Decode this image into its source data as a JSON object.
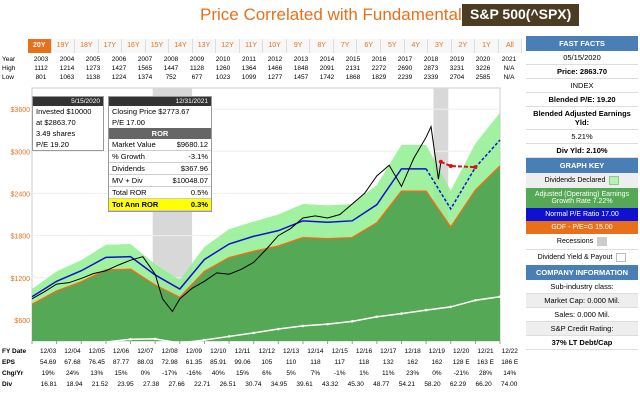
{
  "header": {
    "title": "Price Correlated with Fundamentals",
    "ticker": "S&P 500(^SPX)"
  },
  "tabs": [
    "20Y",
    "19Y",
    "18Y",
    "17Y",
    "16Y",
    "15Y",
    "14Y",
    "13Y",
    "12Y",
    "11Y",
    "10Y",
    "9Y",
    "8Y",
    "7Y",
    "6Y",
    "5Y",
    "4Y",
    "3Y",
    "2Y",
    "1Y",
    "All"
  ],
  "year_table": {
    "year_label": "Year",
    "high_label": "High",
    "low_label": "Low",
    "years": [
      "2003",
      "2004",
      "2005",
      "2006",
      "2007",
      "2008",
      "2009",
      "2010",
      "2011",
      "2012",
      "2013",
      "2014",
      "2015",
      "2016",
      "2017",
      "2018",
      "2019",
      "2020",
      "2021"
    ],
    "high": [
      "1112",
      "1214",
      "1273",
      "1427",
      "1565",
      "1447",
      "1128",
      "1260",
      "1364",
      "1466",
      "1848",
      "2091",
      "2131",
      "2272",
      "2690",
      "2873",
      "3231",
      "3226",
      "N/A"
    ],
    "low": [
      "801",
      "1063",
      "1138",
      "1224",
      "1374",
      "752",
      "677",
      "1023",
      "1099",
      "1277",
      "1457",
      "1742",
      "1868",
      "1829",
      "2239",
      "2339",
      "2704",
      "2585",
      "N/A"
    ]
  },
  "info_box": {
    "date": "5/15/2020",
    "line1": "Invested $10000",
    "line2": "at $2863.70",
    "line3": "3.49 shares",
    "line4": "P/E 19.20"
  },
  "ror_box": {
    "date": "12/31/2021",
    "line1": "Closing Price $2773.67",
    "line2": "P/E 17.00",
    "section": "ROR",
    "rows": [
      {
        "label": "Market Value",
        "value": "$9680.12"
      },
      {
        "label": "% Growth",
        "value": "-3.1%"
      },
      {
        "label": "Dividends",
        "value": "$367.96"
      },
      {
        "label": "MV + Div",
        "value": "$10048.07"
      },
      {
        "label": "Total ROR",
        "value": "0.5%"
      },
      {
        "label": "Tot Ann ROR",
        "value": "0.3%"
      }
    ]
  },
  "bottom_table": {
    "fy_label": "FY Date",
    "fy": [
      "12/03",
      "12/04",
      "12/05",
      "12/06",
      "12/07",
      "12/08",
      "12/09",
      "12/10",
      "12/11",
      "12/12",
      "12/13",
      "12/14",
      "12/15",
      "12/16",
      "12/17",
      "12/18",
      "12/19",
      "12/20",
      "12/21",
      "12/22"
    ],
    "eps_label": "EPS",
    "eps": [
      "54.69",
      "67.68",
      "76.45",
      "87.77",
      "88.03",
      "72.98",
      "61.35",
      "85.91",
      "99.06",
      "105",
      "110",
      "118",
      "117",
      "118",
      "132",
      "162",
      "162",
      "128 E",
      "163 E",
      "186 E"
    ],
    "chg_label": "Chg/Yr",
    "chg": [
      "19%",
      "24%",
      "13%",
      "15%",
      "0%",
      "-17%",
      "-16%",
      "40%",
      "15%",
      "6%",
      "5%",
      "7%",
      "-1%",
      "1%",
      "11%",
      "23%",
      "0%",
      "-21%",
      "28%",
      "14%"
    ],
    "div_label": "Div",
    "div": [
      "16.81",
      "18.94",
      "21.52",
      "23.95",
      "27.38",
      "27.66",
      "22.71",
      "26.51",
      "30.74",
      "34.95",
      "39.61",
      "43.32",
      "45.30",
      "48.77",
      "54.21",
      "58.20",
      "62.29",
      "66.20",
      "74.00"
    ]
  },
  "sidebar": {
    "fast_facts": "FAST FACTS",
    "date": "05/15/2020",
    "price": "Price: 2863.70",
    "index": "INDEX",
    "blended_pe": "Blended P/E: 19.20",
    "blended_yld_label": "Blended Adjusted Earnings Yld:",
    "blended_yld": "5.21%",
    "div_yld": "Div Yld: 2.10%",
    "graph_key": "GRAPH KEY",
    "dividends_declared": "Dividends Declared",
    "adj_earnings": "Adjusted (Operating) Earnings Growth Rate 7.22%",
    "normal_pe": "Normal P/E Ratio 17.00",
    "gdf_pe": "GDF - P/E=G 15.00",
    "recessions": "Recessions",
    "div_yield_payout": "Dividend Yield & Payout",
    "company_info": "COMPANY INFORMATION",
    "subindustry": "Sub-industry class:",
    "market_cap": "Market Cap: 0.000 Mil.",
    "sales": "Sales: 0.000 Mil.",
    "credit": "S&P Credit Rating:",
    "lt_debt": "37% LT Debt/Cap"
  },
  "colors": {
    "orange": "#e8701a",
    "green_band": "#8ff08f",
    "earnings_fill": "#55a855",
    "recession": "#d8d8d8",
    "normal_pe": "#1010d0",
    "price": "#000000",
    "projection_red": "#e01010",
    "white_line": "#ffffff"
  },
  "chart_data": {
    "type": "area",
    "ylabel": "",
    "y_ticks": [
      "$600",
      "$1200",
      "$1800",
      "$2400",
      "$3000",
      "$3600"
    ],
    "ylim": [
      300,
      3900
    ],
    "x_ticks": [
      "12/03",
      "12/04",
      "12/05",
      "12/06",
      "12/07",
      "12/08",
      "12/09",
      "12/10",
      "12/11",
      "12/12",
      "12/13",
      "12/14",
      "12/15",
      "12/16",
      "12/17",
      "12/18",
      "12/19",
      "12/20",
      "12/21",
      "12/22"
    ],
    "earnings_value_line": [
      820,
      1010,
      1140,
      1310,
      1320,
      1095,
      920,
      1290,
      1485,
      1575,
      1650,
      1770,
      1755,
      1770,
      1980,
      2430,
      2430,
      1920,
      2445,
      2790
    ],
    "upper_band": [
      1040,
      1290,
      1450,
      1670,
      1680,
      1390,
      1170,
      1640,
      1890,
      2000,
      2100,
      2250,
      2230,
      2250,
      2520,
      3090,
      3090,
      2440,
      3110,
      3550
    ],
    "normal_pe_line": [
      930,
      1150,
      1300,
      1490,
      1500,
      1240,
      1040,
      1460,
      1680,
      1790,
      1870,
      2010,
      1990,
      2010,
      2240,
      2750,
      2750,
      2180,
      2770,
      3160
    ],
    "price_series": [
      [
        0,
        900
      ],
      [
        0.5,
        1000
      ],
      [
        1,
        1110
      ],
      [
        1.5,
        1130
      ],
      [
        2,
        1190
      ],
      [
        2.5,
        1260
      ],
      [
        3,
        1300
      ],
      [
        3.5,
        1380
      ],
      [
        4,
        1450
      ],
      [
        4.5,
        1500
      ],
      [
        4.8,
        1350
      ],
      [
        5,
        1250
      ],
      [
        5.3,
        900
      ],
      [
        5.7,
        720
      ],
      [
        6,
        900
      ],
      [
        6.5,
        1050
      ],
      [
        7,
        1150
      ],
      [
        7.5,
        1270
      ],
      [
        8,
        1250
      ],
      [
        8.5,
        1320
      ],
      [
        9,
        1420
      ],
      [
        9.5,
        1600
      ],
      [
        10,
        1800
      ],
      [
        10.5,
        1900
      ],
      [
        11,
        2050
      ],
      [
        11.5,
        2080
      ],
      [
        12,
        2050
      ],
      [
        12.5,
        2100
      ],
      [
        13,
        2250
      ],
      [
        13.5,
        2400
      ],
      [
        14,
        2650
      ],
      [
        14.5,
        2800
      ],
      [
        15,
        2500
      ],
      [
        15.5,
        2900
      ],
      [
        16,
        3200
      ],
      [
        16.2,
        3350
      ],
      [
        16.5,
        2600
      ],
      [
        16.6,
        2850
      ]
    ],
    "projection_red": [
      [
        16.6,
        2850
      ],
      [
        17,
        2790
      ],
      [
        18,
        2773.67
      ]
    ],
    "dividend_line": [
      200,
      225,
      255,
      285,
      325,
      330,
      270,
      315,
      365,
      415,
      470,
      515,
      540,
      580,
      645,
      690,
      740,
      785,
      880,
      930
    ],
    "recessions": [
      [
        4.9,
        6.5
      ],
      [
        16.3,
        16.9
      ]
    ],
    "series": [
      {
        "name": "Dividends Declared"
      },
      {
        "name": "Adjusted (Operating) Earnings Growth Rate 7.22%"
      },
      {
        "name": "Normal P/E Ratio 17.00"
      },
      {
        "name": "GDF - P/E=G 15.00"
      }
    ]
  }
}
